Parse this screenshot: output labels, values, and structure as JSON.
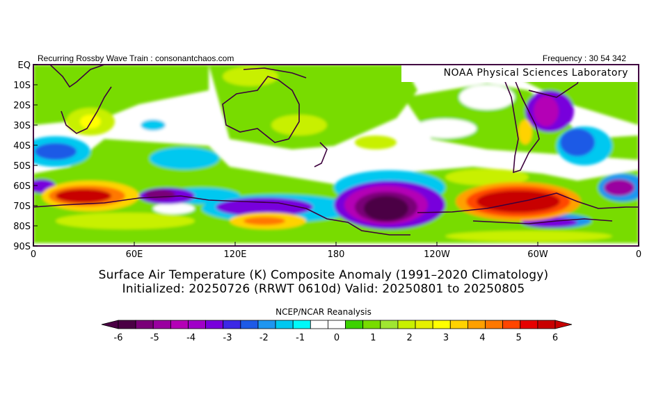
{
  "header": {
    "left": "Recurring Rossby Wave Train : consonantchaos.com",
    "right": "Frequency : 30 54 342",
    "lab": "NOAA Physical Sciences Laboratory"
  },
  "map": {
    "lat_labels": [
      "EQ",
      "10S",
      "20S",
      "30S",
      "40S",
      "50S",
      "60S",
      "70S",
      "80S",
      "90S"
    ],
    "lon_labels": [
      "0",
      "60E",
      "120E",
      "180",
      "120W",
      "60W",
      "0"
    ]
  },
  "captions": {
    "line1": "Surface Air Temperature (K) Composite Anomaly (1991–2020 Climatology)",
    "line2": "Initialized: 20250726 (RRWT 0610d) Valid: 20250801 to 20250805",
    "source": "NCEP/NCAR Reanalysis"
  },
  "colorbar": {
    "tick_labels": [
      "-6",
      "-5",
      "-4",
      "-3",
      "-2",
      "-1",
      "0",
      "1",
      "2",
      "3",
      "4",
      "5",
      "6"
    ],
    "colors": [
      "#4b0045",
      "#7a0078",
      "#9a00a0",
      "#b400b6",
      "#a000c8",
      "#7800dc",
      "#3c28e6",
      "#1e5ae6",
      "#1e96f0",
      "#00c8f0",
      "#00fafa",
      "#ffffff",
      "#ffffff",
      "#3cd200",
      "#78dc00",
      "#a0e632",
      "#c8f000",
      "#e6f000",
      "#ffff00",
      "#ffd200",
      "#ffa000",
      "#ff7800",
      "#ff4600",
      "#e60000",
      "#c80000"
    ]
  },
  "colors": {
    "frame": "#400040",
    "land_outline": "#3c003c"
  }
}
